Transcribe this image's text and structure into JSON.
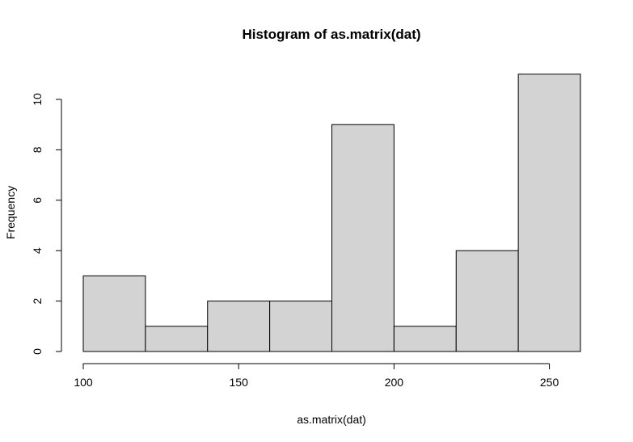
{
  "chart_data": {
    "type": "bar",
    "title": "Histogram of as.matrix(dat)",
    "xlabel": "as.matrix(dat)",
    "ylabel": "Frequency",
    "bins": [
      {
        "from": 100,
        "to": 120,
        "count": 3
      },
      {
        "from": 120,
        "to": 140,
        "count": 1
      },
      {
        "from": 140,
        "to": 160,
        "count": 2
      },
      {
        "from": 160,
        "to": 180,
        "count": 2
      },
      {
        "from": 180,
        "to": 200,
        "count": 9
      },
      {
        "from": 200,
        "to": 220,
        "count": 1
      },
      {
        "from": 220,
        "to": 240,
        "count": 4
      },
      {
        "from": 240,
        "to": 260,
        "count": 11
      }
    ],
    "x_ticks": [
      100,
      150,
      200,
      250
    ],
    "y_ticks": [
      0,
      2,
      4,
      6,
      8,
      10
    ],
    "xlim": [
      100,
      260
    ],
    "ylim": [
      0,
      11
    ],
    "grid": false,
    "bar_color": "#d3d3d3"
  }
}
